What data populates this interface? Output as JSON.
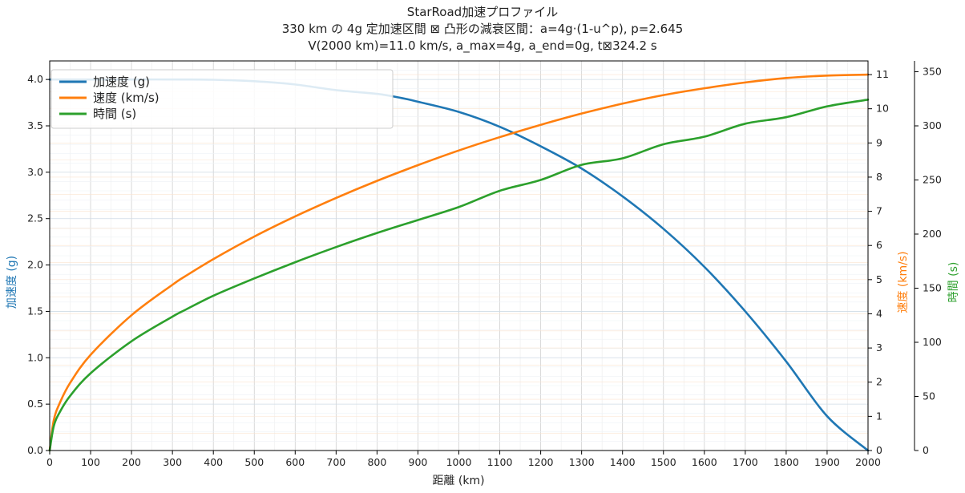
{
  "chart_data": {
    "type": "line",
    "title_lines": [
      "StarRoad加速プロファイル",
      "330 km の 4g 定加速区間 ⊠ 凸形の減衰区間：a=4g·(1-u^p), p=2.645",
      "V(2000 km)=11.0 km/s, a_max=4g, a_end=0g, t⊠324.2 s"
    ],
    "xlabel": "距離 (km)",
    "ylabel_left": "加速度 (g)",
    "ylabel_right1": "速度 (km/s)",
    "ylabel_right2": "時間 (s)",
    "xlim": [
      0,
      2000
    ],
    "ylim_left": [
      0,
      4.2
    ],
    "ylim_right1": [
      0,
      11.4
    ],
    "ylim_right2": [
      0,
      360
    ],
    "x_ticks": [
      "0",
      "100",
      "200",
      "300",
      "400",
      "500",
      "600",
      "700",
      "800",
      "900",
      "1000",
      "1100",
      "1200",
      "1300",
      "1400",
      "1500",
      "1600",
      "1700",
      "1800",
      "1900",
      "2000"
    ],
    "left_ticks": [
      "0.0",
      "0.5",
      "1.0",
      "1.5",
      "2.0",
      "2.5",
      "3.0",
      "3.5",
      "4.0"
    ],
    "right1_ticks": [
      "0",
      "1",
      "2",
      "3",
      "4",
      "5",
      "6",
      "7",
      "8",
      "9",
      "10",
      "11"
    ],
    "right2_ticks": [
      "0",
      "50",
      "100",
      "150",
      "200",
      "250",
      "300",
      "350"
    ],
    "grid": true,
    "legend_position": "upper-left",
    "colors": {
      "acceleration": "#1f77b4",
      "velocity": "#ff7f0e",
      "time": "#2ca02c"
    },
    "series": [
      {
        "name": "加速度 (g)",
        "axis": "left",
        "x": [
          0,
          100,
          200,
          330,
          400,
          500,
          600,
          700,
          800,
          860,
          900,
          1000,
          1100,
          1200,
          1300,
          1400,
          1500,
          1600,
          1700,
          1800,
          1900,
          2000
        ],
        "y": [
          4.0,
          4.0,
          4.0,
          4.0,
          3.997,
          3.981,
          3.946,
          3.885,
          3.845,
          3.8,
          3.76,
          3.65,
          3.49,
          3.28,
          3.04,
          2.74,
          2.39,
          1.98,
          1.5,
          0.96,
          0.37,
          0.0
        ]
      },
      {
        "name": "速度 (km/s)",
        "axis": "right1",
        "x": [
          0,
          10,
          25,
          50,
          100,
          200,
          300,
          330,
          400,
          500,
          600,
          700,
          800,
          900,
          1000,
          1100,
          1200,
          1300,
          1400,
          1500,
          1600,
          1700,
          1800,
          1900,
          2000
        ],
        "y": [
          0,
          0.89,
          1.4,
          1.98,
          2.8,
          3.96,
          4.85,
          5.09,
          5.6,
          6.26,
          6.85,
          7.39,
          7.89,
          8.35,
          8.78,
          9.17,
          9.53,
          9.86,
          10.15,
          10.4,
          10.6,
          10.77,
          10.9,
          10.97,
          11.0
        ]
      },
      {
        "name": "時間 (s)",
        "axis": "right2",
        "x": [
          0,
          10,
          25,
          50,
          100,
          200,
          300,
          330,
          400,
          500,
          600,
          700,
          800,
          900,
          1000,
          1100,
          1200,
          1300,
          1400,
          1500,
          1600,
          1700,
          1800,
          1900,
          2000
        ],
        "y": [
          0,
          22.6,
          35.7,
          50.5,
          71.4,
          101,
          123.7,
          129.7,
          143,
          159,
          174,
          188,
          201,
          213,
          225,
          240,
          250,
          264,
          270,
          283,
          290,
          302,
          308,
          318,
          324.2
        ]
      }
    ]
  }
}
